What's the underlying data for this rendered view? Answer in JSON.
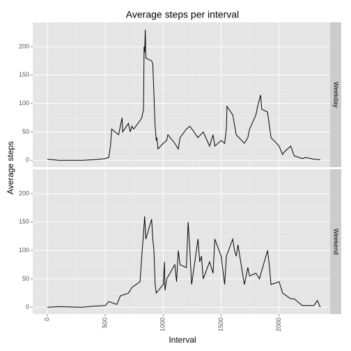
{
  "chart_data": {
    "type": "line",
    "title": "Average steps per interval",
    "xlabel": "Interval",
    "ylabel": "Average steps",
    "xlim": [
      -126,
      2440
    ],
    "ylim": [
      -12,
      243
    ],
    "xticks": [
      0,
      500,
      1000,
      1500,
      2000
    ],
    "yticks": [
      0,
      50,
      100,
      150,
      200
    ],
    "grid": true,
    "series": [
      {
        "name": "Weekday",
        "color": "#000000",
        "x": [
          0,
          100,
          200,
          300,
          400,
          500,
          530,
          545,
          555,
          615,
          630,
          645,
          650,
          700,
          715,
          730,
          745,
          800,
          815,
          830,
          835,
          840,
          845,
          850,
          900,
          910,
          930,
          940,
          945,
          955,
          1000,
          1030,
          1040,
          1100,
          1130,
          1145,
          1200,
          1230,
          1300,
          1345,
          1400,
          1430,
          1445,
          1500,
          1530,
          1545,
          1550,
          1600,
          1630,
          1700,
          1730,
          1745,
          1800,
          1815,
          1840,
          1850,
          1900,
          1930,
          2000,
          2030,
          2045,
          2100,
          2130,
          2200,
          2230,
          2300,
          2355
        ],
        "values": [
          2,
          0,
          0,
          0,
          1,
          3,
          5,
          25,
          55,
          45,
          60,
          75,
          50,
          65,
          50,
          60,
          55,
          70,
          75,
          90,
          200,
          190,
          230,
          180,
          175,
          170,
          60,
          35,
          40,
          20,
          30,
          35,
          45,
          30,
          20,
          40,
          55,
          60,
          40,
          50,
          25,
          45,
          25,
          35,
          30,
          55,
          95,
          80,
          45,
          30,
          40,
          55,
          80,
          95,
          115,
          90,
          85,
          40,
          25,
          10,
          15,
          25,
          8,
          3,
          5,
          2,
          1
        ]
      },
      {
        "name": "Weekend",
        "color": "#000000",
        "x": [
          0,
          100,
          300,
          400,
          500,
          530,
          600,
          630,
          700,
          730,
          800,
          815,
          830,
          840,
          850,
          900,
          910,
          920,
          930,
          940,
          1000,
          1010,
          1015,
          1030,
          1100,
          1115,
          1130,
          1145,
          1200,
          1215,
          1230,
          1245,
          1300,
          1315,
          1330,
          1345,
          1400,
          1430,
          1445,
          1500,
          1530,
          1545,
          1600,
          1615,
          1630,
          1645,
          1700,
          1730,
          1745,
          1800,
          1830,
          1900,
          1915,
          1930,
          2000,
          2030,
          2100,
          2130,
          2200,
          2300,
          2330,
          2355
        ],
        "values": [
          0,
          1,
          0,
          2,
          3,
          10,
          5,
          20,
          25,
          35,
          45,
          90,
          130,
          160,
          120,
          155,
          120,
          100,
          40,
          25,
          40,
          80,
          30,
          50,
          75,
          45,
          100,
          75,
          70,
          150,
          100,
          40,
          120,
          80,
          90,
          50,
          80,
          60,
          120,
          90,
          40,
          90,
          120,
          100,
          90,
          110,
          40,
          70,
          55,
          60,
          50,
          100,
          75,
          40,
          45,
          25,
          15,
          15,
          3,
          3,
          12,
          0
        ]
      }
    ]
  }
}
